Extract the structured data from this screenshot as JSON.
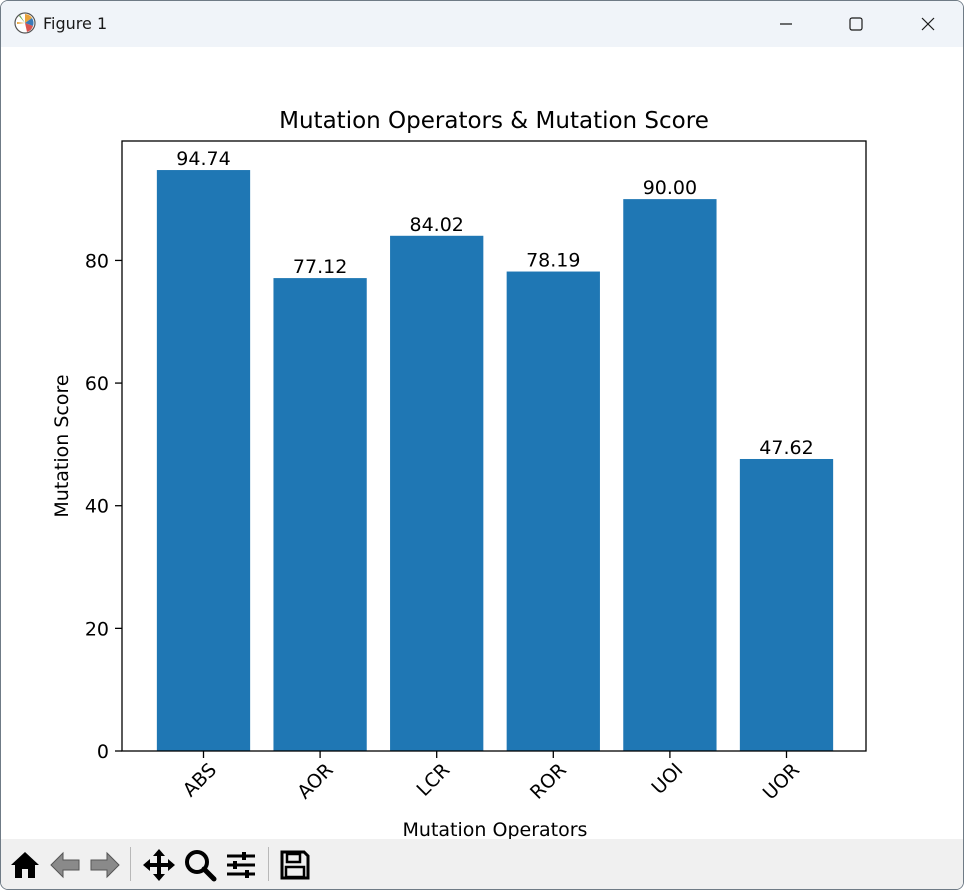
{
  "window": {
    "title": "Figure 1",
    "icon": "matplotlib-logo-icon",
    "controls": [
      "minimize-icon",
      "maximize-icon",
      "close-icon"
    ]
  },
  "toolbar": {
    "tools": [
      "home-icon",
      "back-arrow-icon",
      "forward-arrow-icon",
      "pan-move-icon",
      "zoom-magnifier-icon",
      "configure-subplots-icon",
      "save-floppy-icon"
    ]
  },
  "chart_data": {
    "type": "bar",
    "title": "Mutation Operators & Mutation Score",
    "xlabel": "Mutation Operators",
    "ylabel": "Mutation Score",
    "categories": [
      "ABS",
      "AOR",
      "LCR",
      "ROR",
      "UOI",
      "UOR"
    ],
    "values": [
      94.74,
      77.12,
      84.02,
      78.19,
      90.0,
      47.62
    ],
    "value_labels": [
      "94.74",
      "77.12",
      "84.02",
      "78.19",
      "90.00",
      "47.62"
    ],
    "yticks": [
      0,
      20,
      40,
      60,
      80
    ],
    "ytick_labels": [
      "0",
      "20",
      "40",
      "60",
      "80"
    ],
    "ylim": [
      0,
      99.477
    ],
    "bar_color": "#1f77b4",
    "grid": false,
    "legend": "none"
  }
}
